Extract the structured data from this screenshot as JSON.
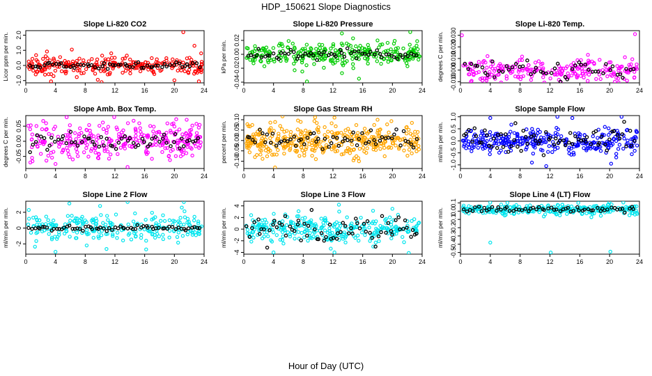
{
  "page": {
    "title": "HDP_150621  Slope Diagnostics",
    "xlabel": "Hour of Day (UTC)"
  },
  "chart_data": [
    {
      "type": "scatter",
      "title": "Slope Li-820 CO2",
      "ylabel": "Licor ppm per min.",
      "color": "#ff0000",
      "xlim": [
        0,
        24
      ],
      "xticks": [
        0,
        4,
        8,
        12,
        16,
        20,
        24
      ],
      "ylim": [
        -1.15,
        2.3
      ],
      "yticks": [
        -1,
        0,
        1,
        2
      ],
      "ytick_labels": [
        "-1.0",
        "0.0",
        "1.0",
        "2.0"
      ],
      "center": 0,
      "spread": 0.28,
      "black_spread": 0.1,
      "n": 260,
      "n_black": 60,
      "outliers": [
        [
          3.4,
          -1.05
        ],
        [
          6.2,
          1.05
        ],
        [
          10.2,
          -1.1
        ],
        [
          11.5,
          0.8
        ],
        [
          13.6,
          0.65
        ],
        [
          21.2,
          2.2
        ],
        [
          22.7,
          1.3
        ],
        [
          23.3,
          -1.05
        ],
        [
          23.6,
          0.8
        ]
      ]
    },
    {
      "type": "scatter",
      "title": "Slope Li-820 Pressure",
      "ylabel": "kPa per min.",
      "color": "#00cc00",
      "xlim": [
        0,
        24
      ],
      "xticks": [
        0,
        4,
        8,
        12,
        16,
        20,
        24
      ],
      "ylim": [
        -0.041,
        0.034
      ],
      "yticks": [
        -0.04,
        -0.02,
        0,
        0.02
      ],
      "ytick_labels": [
        "-0.04",
        "-0.02",
        "0.00",
        "0.02"
      ],
      "center": 0,
      "spread": 0.009,
      "black_spread": 0.005,
      "n": 280,
      "n_black": 60,
      "outliers": [
        [
          8.5,
          -0.039
        ],
        [
          13.2,
          0.03
        ],
        [
          15.5,
          -0.035
        ],
        [
          22.4,
          0.032
        ]
      ]
    },
    {
      "type": "scatter",
      "title": "Slope Li-820 Temp.",
      "ylabel": "degrees C per min.",
      "color": "#ff00ff",
      "xlim": [
        0,
        24
      ],
      "xticks": [
        0,
        4,
        8,
        12,
        16,
        20,
        24
      ],
      "ylim": [
        -0.011,
        0.034
      ],
      "yticks": [
        -0.01,
        0,
        0.01,
        0.02,
        0.03
      ],
      "ytick_labels": [
        "-0.010",
        "0.000",
        "0.010",
        "0.020",
        "0.030"
      ],
      "center": 0,
      "spread": 0.005,
      "black_spread": 0.004,
      "n": 240,
      "n_black": 50,
      "outliers": [
        [
          0.2,
          0.03
        ],
        [
          3.5,
          -0.009
        ],
        [
          20.7,
          -0.01
        ],
        [
          23.4,
          0.031
        ]
      ]
    },
    {
      "type": "scatter",
      "title": "Slope Amb. Box Temp.",
      "ylabel": "degrees C per min.",
      "color": "#ff00ff",
      "xlim": [
        0,
        24
      ],
      "xticks": [
        0,
        4,
        8,
        12,
        16,
        20,
        24
      ],
      "ylim": [
        -0.09,
        0.085
      ],
      "yticks": [
        -0.05,
        0,
        0.05
      ],
      "ytick_labels": [
        "-0.05",
        "0.00",
        "0.05"
      ],
      "center": 0,
      "spread": 0.03,
      "black_spread": 0.015,
      "n": 300,
      "n_black": 60,
      "outliers": [
        [
          4.0,
          -0.075
        ],
        [
          13.7,
          -0.085
        ],
        [
          11.9,
          0.08
        ]
      ]
    },
    {
      "type": "scatter",
      "title": "Slope Gas Stream RH",
      "ylabel": "percent per min.",
      "color": "#ffa500",
      "xlim": [
        0,
        24
      ],
      "xticks": [
        0,
        4,
        8,
        12,
        16,
        20,
        24
      ],
      "ylim": [
        -0.135,
        0.12
      ],
      "yticks": [
        -0.1,
        -0.05,
        0,
        0.05,
        0.1
      ],
      "ytick_labels": [
        "-0.10",
        "-0.05",
        "0.00",
        "0.05",
        "0.10"
      ],
      "center": 0,
      "spread": 0.04,
      "black_spread": 0.02,
      "n": 380,
      "n_black": 60,
      "outliers": [
        [
          1.5,
          -0.08
        ],
        [
          4.2,
          -0.13
        ],
        [
          9.7,
          -0.09
        ],
        [
          12.2,
          0.11
        ],
        [
          15.5,
          -0.1
        ],
        [
          18.0,
          0.1
        ]
      ]
    },
    {
      "type": "scatter",
      "title": "Slope Sample Flow",
      "ylabel": "ml/min per min.",
      "color": "#0000ff",
      "xlim": [
        0,
        24
      ],
      "xticks": [
        0,
        4,
        8,
        12,
        16,
        20,
        24
      ],
      "ylim": [
        -1.15,
        1.05
      ],
      "yticks": [
        -1,
        -0.5,
        0,
        0.5,
        1
      ],
      "ytick_labels": [
        "-1.0",
        "-0.5",
        "0.0",
        "0.5",
        "1.0"
      ],
      "center": 0,
      "spread": 0.25,
      "black_spread": 0.28,
      "n": 320,
      "n_black": 70,
      "outliers": [
        [
          4.0,
          0.95
        ],
        [
          11.5,
          -1.05
        ],
        [
          13.0,
          1.0
        ],
        [
          15.0,
          0.95
        ],
        [
          20.2,
          -0.95
        ],
        [
          21.6,
          1.0
        ]
      ]
    },
    {
      "type": "scatter",
      "title": "Slope Line 2 Flow",
      "ylabel": "ml/min per min.",
      "color": "#00e5ee",
      "xlim": [
        0,
        24
      ],
      "xticks": [
        0,
        4,
        8,
        12,
        16,
        20,
        24
      ],
      "ylim": [
        -3.3,
        3.4
      ],
      "yticks": [
        -2,
        0,
        2
      ],
      "ytick_labels": [
        "-2",
        "0",
        "2"
      ],
      "center": 0,
      "spread": 0.85,
      "black_spread": 0.15,
      "n": 240,
      "n_black": 65,
      "outliers": [
        [
          4.0,
          -3.0
        ],
        [
          8.2,
          -2.2
        ],
        [
          10.0,
          2.8
        ],
        [
          13.7,
          3.3
        ],
        [
          16.2,
          -2.7
        ],
        [
          21.0,
          2.6
        ]
      ]
    },
    {
      "type": "scatter",
      "title": "Slope Line 3 Flow",
      "ylabel": "ml/min per min.",
      "color": "#00e5ee",
      "xlim": [
        0,
        24
      ],
      "xticks": [
        0,
        4,
        8,
        12,
        16,
        20,
        24
      ],
      "ylim": [
        -4.3,
        4.8
      ],
      "yticks": [
        -4,
        -2,
        0,
        2,
        4
      ],
      "ytick_labels": [
        "-4",
        "-2",
        "0",
        "2",
        "4"
      ],
      "center": 0,
      "spread": 1.1,
      "black_spread": 1.1,
      "n": 300,
      "n_black": 70,
      "outliers": [
        [
          4.0,
          -4.0
        ],
        [
          12.2,
          -4.0
        ],
        [
          12.8,
          4.2
        ],
        [
          22.2,
          -4.1
        ],
        [
          20.0,
          3.5
        ]
      ]
    },
    {
      "type": "scatter",
      "title": "Slope Line 4 (LT) Flow",
      "ylabel": "ml/min per min.",
      "color": "#00e5ee",
      "xlim": [
        0,
        24
      ],
      "xticks": [
        0,
        4,
        8,
        12,
        16,
        20,
        24
      ],
      "ylim": [
        -0.52,
        0.12
      ],
      "yticks": [
        -0.5,
        -0.4,
        -0.3,
        -0.2,
        -0.1,
        0,
        0.1
      ],
      "ytick_labels": [
        "-0.5",
        "-0.4",
        "-0.3",
        "-0.2",
        "-0.1",
        "0.0",
        "0.1"
      ],
      "center": 0.02,
      "spread": 0.03,
      "black_spread": 0.02,
      "n": 280,
      "n_black": 60,
      "outliers": [
        [
          4.0,
          -0.38
        ],
        [
          12.1,
          -0.5
        ],
        [
          20.1,
          -0.49
        ],
        [
          6.3,
          0.1
        ],
        [
          15.8,
          0.1
        ]
      ]
    }
  ]
}
